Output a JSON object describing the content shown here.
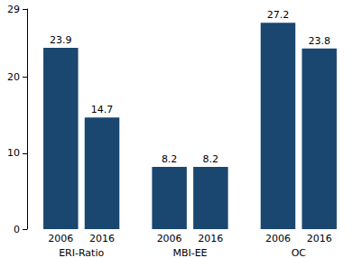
{
  "chart_data": {
    "type": "bar",
    "categories": [
      "ERI-Ratio",
      "MBI-EE",
      "OC"
    ],
    "series": [
      {
        "name": "2006",
        "color": "#1a476f",
        "values": [
          23.9,
          8.2,
          27.2
        ]
      },
      {
        "name": "2016",
        "color": "#1a476f",
        "values": [
          14.7,
          8.2,
          23.8
        ]
      }
    ],
    "ylim": [
      0,
      29
    ],
    "yticks": [
      0,
      10,
      20
    ],
    "grid": false,
    "data_labels": true
  }
}
